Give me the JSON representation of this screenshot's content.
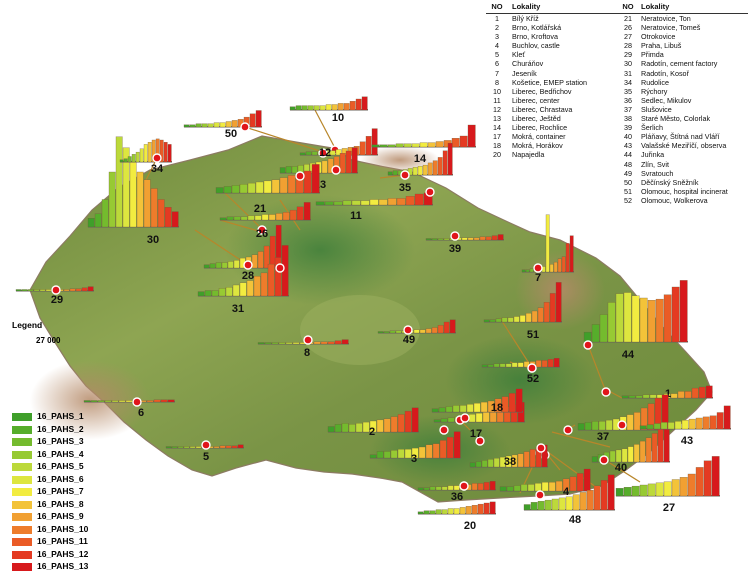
{
  "table": {
    "headers": {
      "no": "NO",
      "locality": "Lokality"
    },
    "rows": [
      {
        "no": "1",
        "name": "Bílý Kříž",
        "no2": "21",
        "name2": "Neratovice, Ton"
      },
      {
        "no": "2",
        "name": "Brno, Kotlářská",
        "no2": "26",
        "name2": "Neratovice, Tomeš"
      },
      {
        "no": "3",
        "name": "Brno, Kroftova",
        "no2": "27",
        "name2": "Otrokovice"
      },
      {
        "no": "4",
        "name": "Buchlov, castle",
        "no2": "28",
        "name2": "Praha, Libuš"
      },
      {
        "no": "5",
        "name": "Kleť",
        "no2": "29",
        "name2": "Přimda"
      },
      {
        "no": "6",
        "name": "Churáňov",
        "no2": "30",
        "name2": "Radotín, cement factory"
      },
      {
        "no": "7",
        "name": "Jeseník",
        "no2": "31",
        "name2": "Radotín, Kosoř"
      },
      {
        "no": "8",
        "name": "Košetice, EMEP station",
        "no2": "34",
        "name2": "Rudolice"
      },
      {
        "no": "10",
        "name": "Liberec, Bedřichov",
        "no2": "35",
        "name2": "Rýchory"
      },
      {
        "no": "11",
        "name": "Liberec, center",
        "no2": "36",
        "name2": "Sedlec, Mikulov"
      },
      {
        "no": "12",
        "name": "Liberec, Chrastava",
        "no2": "37",
        "name2": "Slušovice"
      },
      {
        "no": "13",
        "name": "Liberec, Ještěd",
        "no2": "38",
        "name2": "Staré Město, Colorlak"
      },
      {
        "no": "14",
        "name": "Liberec, Rochlice",
        "no2": "39",
        "name2": "Šerlich"
      },
      {
        "no": "17",
        "name": "Mokrá, container",
        "no2": "40",
        "name2": "Pláňavy, Štítná nad Vláří"
      },
      {
        "no": "18",
        "name": "Mokrá, Horákov",
        "no2": "43",
        "name2": "Valašské Meziříčí, observa"
      },
      {
        "no": "20",
        "name": "Napajedla",
        "no2": "44",
        "name2": "Juřinka"
      },
      {
        "no": "",
        "name": "",
        "no2": "48",
        "name2": "Zlín, Svit"
      },
      {
        "no": "",
        "name": "",
        "no2": "49",
        "name2": "Svratouch"
      },
      {
        "no": "",
        "name": "",
        "no2": "50",
        "name2": "Děčínský Sněžník"
      },
      {
        "no": "",
        "name": "",
        "no2": "51",
        "name2": "Olomouc, hospital incinerat"
      },
      {
        "no": "",
        "name": "",
        "no2": "52",
        "name2": "Olomouc, Wolkerova"
      }
    ]
  },
  "legend": {
    "title": "Legend",
    "scale_value": "27 000",
    "items": [
      {
        "label": "16_PAHS_1",
        "color": "#3f9f2a"
      },
      {
        "label": "16_PAHS_2",
        "color": "#56ad2b"
      },
      {
        "label": "16_PAHS_3",
        "color": "#74bb2e"
      },
      {
        "label": "16_PAHS_4",
        "color": "#97ca33"
      },
      {
        "label": "16_PAHS_5",
        "color": "#bcd93a"
      },
      {
        "label": "16_PAHS_6",
        "color": "#dde63f"
      },
      {
        "label": "16_PAHS_7",
        "color": "#f2ec40"
      },
      {
        "label": "16_PAHS_8",
        "color": "#f3c339"
      },
      {
        "label": "16_PAHS_9",
        "color": "#f1a032"
      },
      {
        "label": "16_PAHS_10",
        "color": "#ee7c2b"
      },
      {
        "label": "16_PAHS_11",
        "color": "#ea5b26"
      },
      {
        "label": "16_PAHS_12",
        "color": "#e43a22"
      },
      {
        "label": "16_PAHS_13",
        "color": "#d7191c"
      }
    ]
  },
  "sites": [
    {
      "label": "1",
      "p": [
        0.2,
        0.2,
        0.2,
        0.3,
        0.3,
        0.3,
        0.4,
        0.4,
        0.6,
        0.6,
        0.9,
        1.0,
        1.1
      ]
    },
    {
      "label": "2",
      "p": [
        0.5,
        0.7,
        0.8,
        0.7,
        0.8,
        0.9,
        1.0,
        1.1,
        1.2,
        1.4,
        1.6,
        1.9,
        2.2
      ]
    },
    {
      "label": "3",
      "p": [
        0.3,
        0.6,
        0.6,
        0.7,
        0.8,
        0.8,
        0.9,
        1.0,
        1.2,
        1.3,
        1.6,
        1.9,
        2.4
      ]
    },
    {
      "label": "4",
      "p": [
        0.4,
        0.4,
        0.5,
        0.6,
        0.6,
        0.7,
        0.8,
        0.8,
        0.9,
        1.1,
        1.3,
        1.6,
        2.0
      ]
    },
    {
      "label": "5",
      "p": [
        0.1,
        0.1,
        0.1,
        0.1,
        0.1,
        0.1,
        0.1,
        0.1,
        0.1,
        0.2,
        0.2,
        0.2,
        0.3
      ]
    },
    {
      "label": "6",
      "p": [
        0.1,
        0.1,
        0.1,
        0.1,
        0.1,
        0.1,
        0.1,
        0.1,
        0.1,
        0.1,
        0.2,
        0.2,
        0.2
      ]
    },
    {
      "label": "7",
      "p": [
        0.2,
        0.2,
        0.3,
        0.3,
        0.4,
        0.5,
        5.2,
        0.7,
        0.9,
        1.2,
        1.4,
        2.6,
        3.3
      ]
    },
    {
      "label": "8",
      "p": [
        0.1,
        0.1,
        0.1,
        0.1,
        0.1,
        0.1,
        0.1,
        0.1,
        0.2,
        0.2,
        0.2,
        0.3,
        0.4
      ]
    },
    {
      "label": "10",
      "p": [
        0.3,
        0.4,
        0.4,
        0.4,
        0.4,
        0.4,
        0.5,
        0.5,
        0.6,
        0.6,
        0.8,
        1.0,
        1.2
      ]
    },
    {
      "label": "11",
      "p": [
        0.3,
        0.3,
        0.3,
        0.4,
        0.4,
        0.4,
        0.5,
        0.5,
        0.6,
        0.6,
        0.8,
        1.0,
        1.1
      ]
    },
    {
      "label": "12",
      "p": [
        0.2,
        0.3,
        0.3,
        0.4,
        0.4,
        0.4,
        0.5,
        0.6,
        0.7,
        0.8,
        1.2,
        1.7,
        2.4
      ]
    },
    {
      "label": "13",
      "p": [
        0.5,
        0.6,
        0.6,
        0.7,
        0.8,
        0.9,
        1.0,
        1.1,
        1.3,
        1.5,
        1.8,
        2.0,
        2.3
      ]
    },
    {
      "label": "14",
      "p": [
        0.2,
        0.2,
        0.2,
        0.3,
        0.3,
        0.3,
        0.4,
        0.4,
        0.5,
        0.6,
        0.8,
        1.0,
        2.0
      ]
    },
    {
      "label": "17",
      "p": [
        0.2,
        0.3,
        0.4,
        0.5,
        0.6,
        0.7,
        0.8,
        0.9,
        1.0,
        1.2,
        1.4,
        1.6,
        1.8
      ]
    },
    {
      "label": "18",
      "p": [
        0.3,
        0.4,
        0.5,
        0.6,
        0.6,
        0.7,
        0.8,
        0.9,
        1.0,
        1.2,
        1.4,
        1.7,
        2.1
      ]
    },
    {
      "label": "20",
      "p": [
        0.2,
        0.3,
        0.3,
        0.4,
        0.4,
        0.5,
        0.5,
        0.6,
        0.7,
        0.8,
        0.9,
        1.0,
        1.1
      ]
    },
    {
      "label": "21",
      "p": [
        0.5,
        0.6,
        0.7,
        0.8,
        0.9,
        1.0,
        1.1,
        1.2,
        1.4,
        1.6,
        1.8,
        2.0,
        2.6
      ]
    },
    {
      "label": "26",
      "p": [
        0.2,
        0.3,
        0.3,
        0.3,
        0.4,
        0.4,
        0.5,
        0.5,
        0.6,
        0.7,
        0.9,
        1.2,
        1.6
      ]
    },
    {
      "label": "27",
      "p": [
        0.7,
        0.8,
        0.9,
        1.0,
        1.1,
        1.2,
        1.3,
        1.5,
        1.7,
        2.0,
        2.6,
        3.2,
        3.6
      ]
    },
    {
      "label": "28",
      "p": [
        0.3,
        0.4,
        0.5,
        0.5,
        0.6,
        0.7,
        0.9,
        1.0,
        1.2,
        1.5,
        2.0,
        2.9,
        3.9
      ]
    },
    {
      "label": "29",
      "p": [
        0.1,
        0.1,
        0.1,
        0.1,
        0.1,
        0.1,
        0.1,
        0.1,
        0.1,
        0.2,
        0.2,
        0.3,
        0.4
      ]
    },
    {
      "label": "30",
      "p": [
        0.8,
        1.2,
        2.5,
        5.0,
        8.2,
        7.2,
        6.0,
        5.0,
        4.3,
        3.5,
        2.5,
        1.8,
        1.4
      ]
    },
    {
      "label": "31",
      "p": [
        0.4,
        0.5,
        0.5,
        0.7,
        0.8,
        1.0,
        1.2,
        1.4,
        1.8,
        2.1,
        2.9,
        3.5,
        4.6
      ]
    },
    {
      "label": "34",
      "p": [
        0.2,
        0.3,
        0.5,
        0.7,
        0.9,
        1.2,
        1.6,
        1.8,
        2.0,
        2.1,
        2.0,
        1.8,
        1.6
      ]
    },
    {
      "label": "35",
      "p": [
        0.3,
        0.4,
        0.4,
        0.5,
        0.6,
        0.7,
        0.8,
        0.9,
        1.1,
        1.3,
        1.6,
        2.2,
        2.9
      ]
    },
    {
      "label": "36",
      "p": [
        0.2,
        0.2,
        0.3,
        0.3,
        0.3,
        0.4,
        0.4,
        0.4,
        0.5,
        0.6,
        0.6,
        0.7,
        0.8
      ]
    },
    {
      "label": "37",
      "p": [
        0.6,
        0.7,
        0.8,
        0.8,
        0.9,
        1.0,
        1.2,
        1.4,
        1.6,
        2.0,
        2.4,
        2.9,
        3.2
      ]
    },
    {
      "label": "38",
      "p": [
        0.4,
        0.5,
        0.6,
        0.7,
        0.8,
        0.9,
        1.0,
        1.1,
        1.2,
        1.4,
        1.6,
        1.8,
        2.0
      ]
    },
    {
      "label": "39",
      "p": [
        0.1,
        0.1,
        0.1,
        0.1,
        0.1,
        0.2,
        0.2,
        0.2,
        0.2,
        0.3,
        0.3,
        0.4,
        0.5
      ]
    },
    {
      "label": "40",
      "p": [
        0.5,
        0.7,
        0.9,
        1.0,
        1.1,
        1.2,
        1.4,
        1.6,
        1.9,
        2.2,
        2.6,
        3.0,
        3.4
      ]
    },
    {
      "label": "43",
      "p": [
        0.3,
        0.4,
        0.5,
        0.6,
        0.6,
        0.7,
        0.8,
        0.9,
        1.0,
        1.1,
        1.2,
        1.5,
        2.1
      ]
    },
    {
      "label": "44",
      "p": [
        0.9,
        1.6,
        2.5,
        3.6,
        4.4,
        4.5,
        4.2,
        4.0,
        3.8,
        3.9,
        4.3,
        5.0,
        5.6
      ]
    },
    {
      "label": "48",
      "p": [
        0.5,
        0.7,
        0.8,
        0.9,
        1.0,
        1.1,
        1.2,
        1.4,
        1.6,
        1.8,
        2.2,
        2.7,
        3.2
      ]
    },
    {
      "label": "49",
      "p": [
        0.1,
        0.1,
        0.2,
        0.2,
        0.2,
        0.2,
        0.3,
        0.3,
        0.4,
        0.5,
        0.7,
        1.0,
        1.2
      ]
    },
    {
      "label": "50",
      "p": [
        0.2,
        0.2,
        0.3,
        0.3,
        0.3,
        0.4,
        0.4,
        0.5,
        0.6,
        0.7,
        0.9,
        1.2,
        1.5
      ]
    },
    {
      "label": "51",
      "p": [
        0.2,
        0.2,
        0.3,
        0.4,
        0.4,
        0.5,
        0.6,
        0.8,
        1.0,
        1.3,
        1.8,
        2.6,
        3.6
      ]
    },
    {
      "label": "52",
      "p": [
        0.2,
        0.2,
        0.3,
        0.3,
        0.3,
        0.4,
        0.4,
        0.5,
        0.5,
        0.6,
        0.6,
        0.7,
        0.8
      ]
    }
  ]
}
